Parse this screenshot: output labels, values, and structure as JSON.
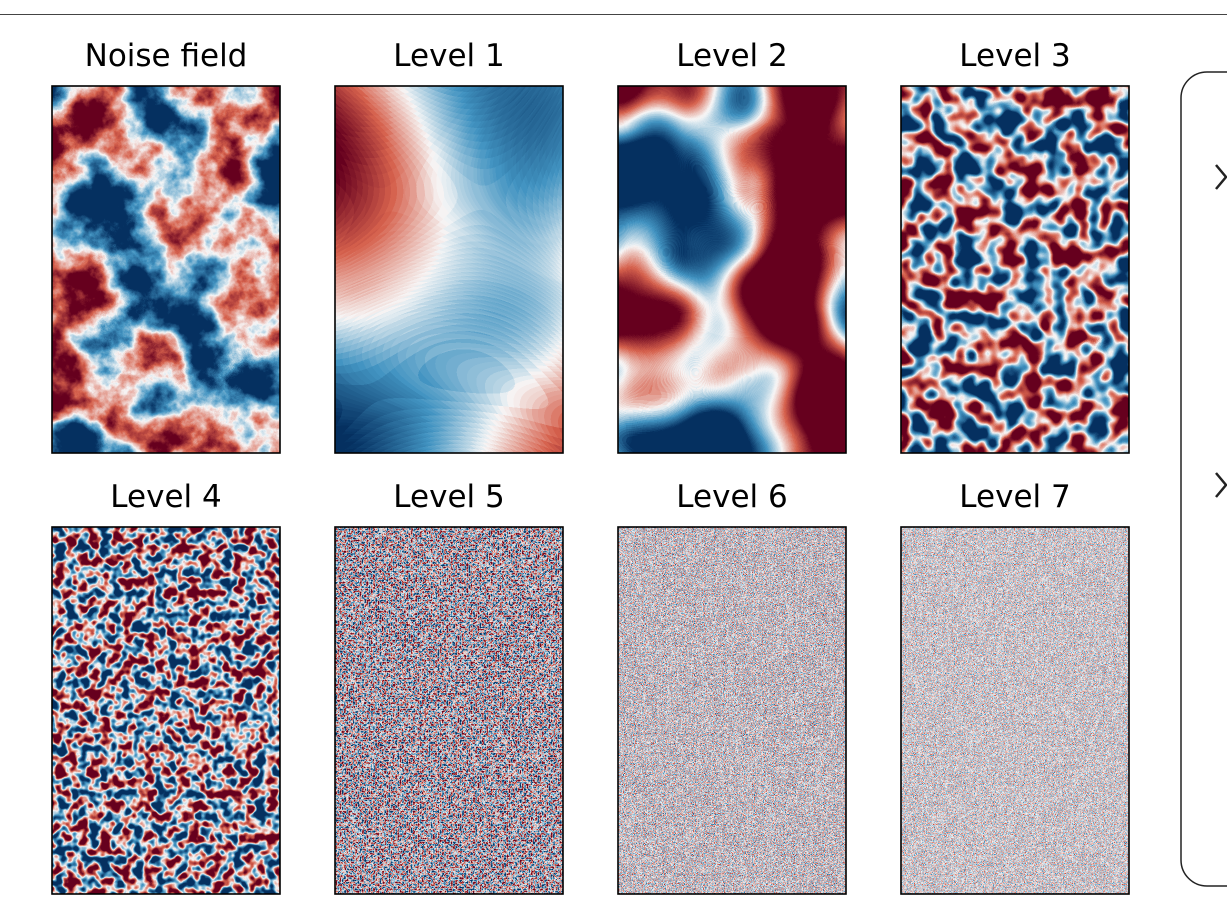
{
  "panels": [
    {
      "title": "Noise field"
    },
    {
      "title": "Level 1"
    },
    {
      "title": "Level 2"
    },
    {
      "title": "Level 3"
    },
    {
      "title": "Level 4"
    },
    {
      "title": "Level 5"
    },
    {
      "title": "Level 6"
    },
    {
      "title": "Level 7"
    }
  ]
}
